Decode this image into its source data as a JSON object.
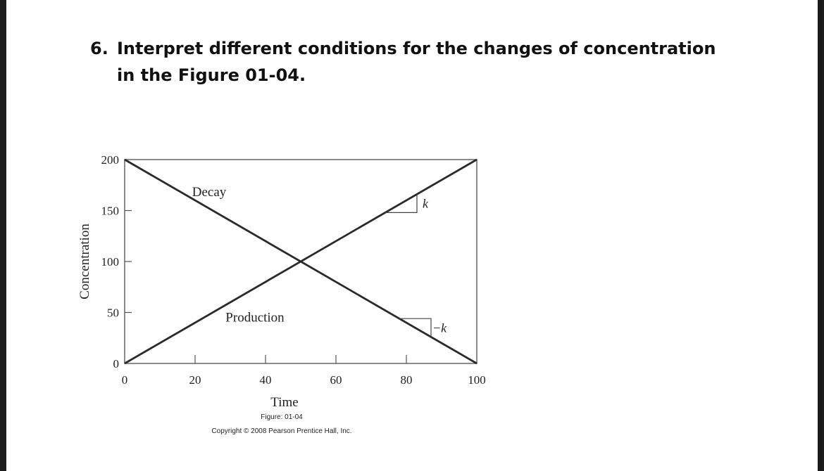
{
  "question": {
    "number": "6.",
    "text": "Interpret different conditions for the changes of concentration in the Figure 01-04."
  },
  "chart_data": {
    "type": "line",
    "xlabel": "Time",
    "ylabel": "Concentration",
    "xlim": [
      0,
      100
    ],
    "ylim": [
      0,
      200
    ],
    "x_ticks": [
      0,
      20,
      40,
      60,
      80,
      100
    ],
    "y_ticks": [
      0,
      50,
      100,
      150,
      200
    ],
    "grid": false,
    "series": [
      {
        "name": "Decay",
        "x": [
          0,
          100
        ],
        "y": [
          200,
          0
        ]
      },
      {
        "name": "Production",
        "x": [
          0,
          100
        ],
        "y": [
          0,
          200
        ]
      }
    ],
    "annotations": [
      {
        "text": "k",
        "kind": "slope-triangle",
        "series": "Production",
        "x": [
          74,
          83
        ]
      },
      {
        "text": "−k",
        "kind": "slope-triangle",
        "series": "Decay",
        "x": [
          78,
          87
        ]
      }
    ],
    "colors": {
      "line": "#2a2a2a"
    }
  },
  "captions": {
    "figure": "Figure: 01-04",
    "copyright": "Copyright © 2008 Pearson Prentice Hall, Inc."
  }
}
